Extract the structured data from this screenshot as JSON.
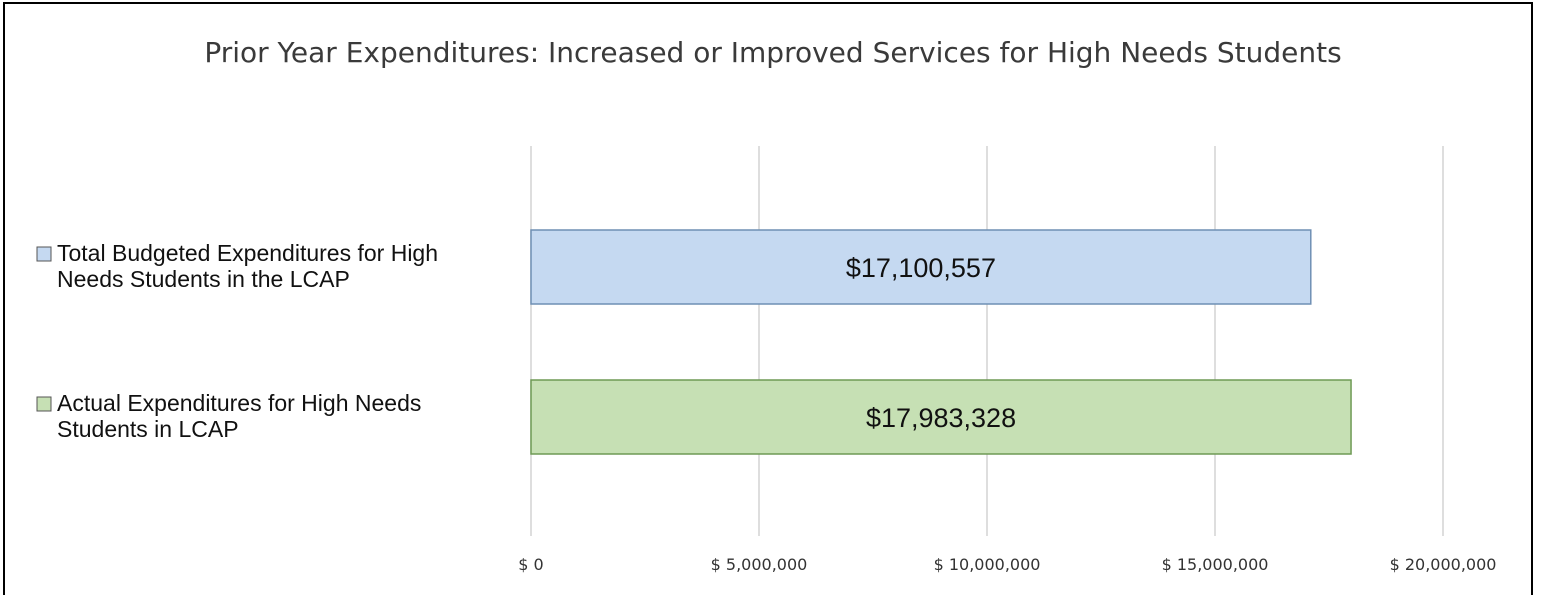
{
  "chart_data": {
    "type": "bar",
    "orientation": "horizontal",
    "title": "Prior Year Expenditures: Increased or Improved Services for High Needs Students",
    "categories": [
      [
        "Total Budgeted Expenditures for High",
        "Needs Students in the LCAP"
      ],
      [
        "Actual Expenditures for High Needs",
        "Students in LCAP"
      ]
    ],
    "values": [
      17100557,
      17983328
    ],
    "data_labels": [
      "$17,100,557",
      "$17,983,328"
    ],
    "colors": [
      "#c5d9f1",
      "#c6e0b4"
    ],
    "edge_colors": [
      "#6f8fb4",
      "#6e9a55"
    ],
    "xlim": [
      0,
      20000000
    ],
    "xticks": [
      0,
      5000000,
      10000000,
      15000000,
      20000000
    ],
    "xtick_labels": [
      "$ 0",
      "$ 5,000,000",
      "$ 10,000,000",
      "$ 15,000,000",
      "$ 20,000,000"
    ],
    "grid": true,
    "legend": "inline-left"
  }
}
